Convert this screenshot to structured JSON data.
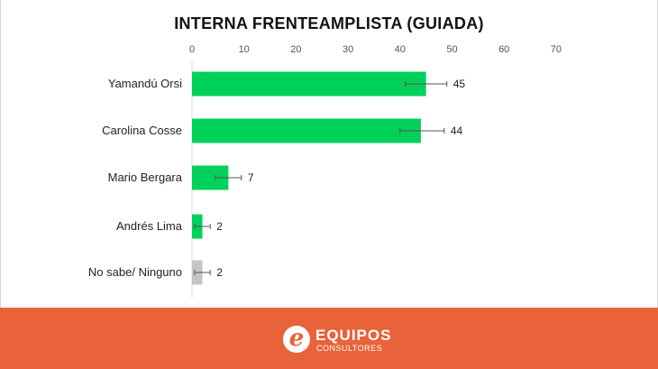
{
  "chart_data": {
    "type": "bar",
    "orientation": "horizontal",
    "title": "INTERNA FRENTEAMPLISTA (GUIADA)",
    "categories": [
      "Yamandú Orsi",
      "Carolina Cosse",
      "Mario Bergara",
      "Andrés Lima",
      "No sabe/ Ninguno"
    ],
    "values": [
      45,
      44,
      7,
      2,
      2
    ],
    "error_low": [
      41,
      40,
      4.5,
      0.5,
      0.5
    ],
    "error_high": [
      49,
      48.5,
      9.5,
      3.5,
      3.5
    ],
    "xlim": [
      0,
      70
    ],
    "xticks": [
      0,
      10,
      20,
      30,
      40,
      50,
      60,
      70
    ],
    "axis_position": "top",
    "bar_colors": [
      "#00d15a",
      "#00d15a",
      "#00d15a",
      "#00d15a",
      "#c4c4c4"
    ],
    "grid": false
  },
  "footer": {
    "logo_letter": "e",
    "logo_name": "EQUIPOS",
    "logo_sub": "CONSULTORES",
    "background": "#e8623a"
  }
}
